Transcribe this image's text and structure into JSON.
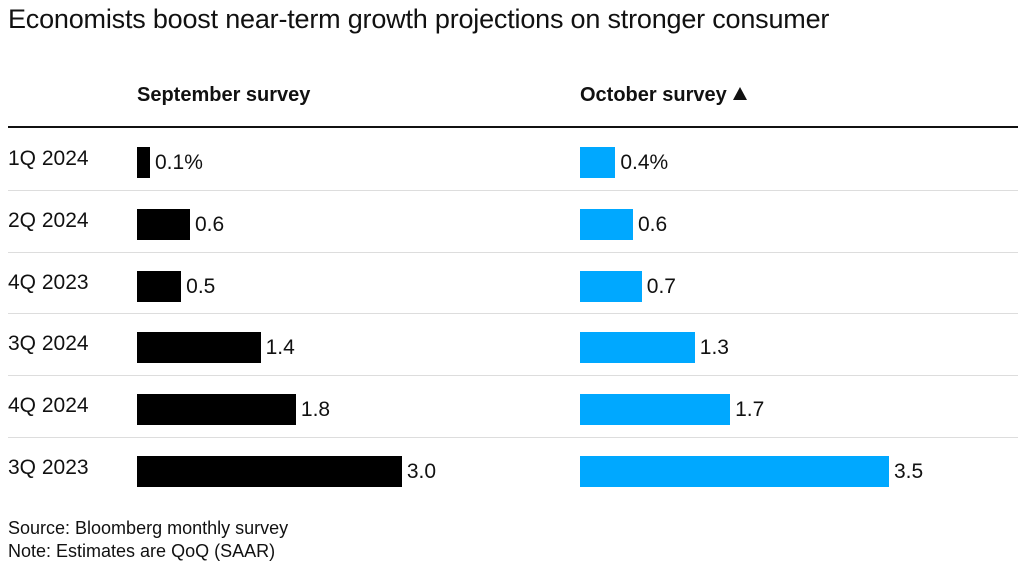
{
  "title": "Economists boost near-term growth projections on stronger consumer",
  "source": "Source: Bloomberg monthly survey",
  "note": "Note: Estimates are QoQ (SAAR)",
  "chart_data": {
    "type": "bar",
    "orientation": "horizontal",
    "title": "Economists boost near-term growth projections on stronger consumer",
    "categories": [
      "1Q 2024",
      "2Q 2024",
      "4Q 2023",
      "3Q 2024",
      "4Q 2024",
      "3Q 2023"
    ],
    "series": [
      {
        "name": "September survey",
        "color": "#000000",
        "values": [
          0.1,
          0.6,
          0.5,
          1.4,
          1.8,
          3.0
        ],
        "labels": [
          "0.1%",
          "0.6",
          "0.5",
          "1.4",
          "1.8",
          "3.0"
        ]
      },
      {
        "name": "October survey",
        "color": "#00a8ff",
        "values": [
          0.4,
          0.6,
          0.7,
          1.3,
          1.7,
          3.5
        ],
        "labels": [
          "0.4%",
          "0.6",
          "0.7",
          "1.3",
          "1.7",
          "3.5"
        ],
        "sorted": "ascending"
      }
    ],
    "xlim": [
      0,
      3.5
    ],
    "grid": false,
    "legend": "column-headers"
  }
}
